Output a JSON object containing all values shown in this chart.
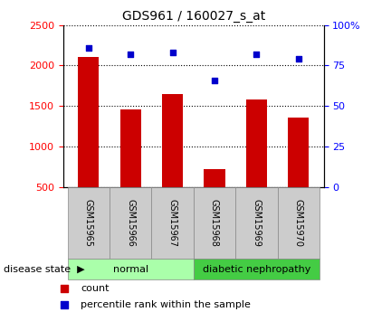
{
  "title": "GDS961 / 160027_s_at",
  "samples": [
    "GSM15965",
    "GSM15966",
    "GSM15967",
    "GSM15968",
    "GSM15969",
    "GSM15970"
  ],
  "counts": [
    2100,
    1460,
    1650,
    720,
    1580,
    1360
  ],
  "percentiles": [
    86,
    82,
    83,
    66,
    82,
    79
  ],
  "ylim_left": [
    500,
    2500
  ],
  "ylim_right": [
    0,
    100
  ],
  "yticks_left": [
    500,
    1000,
    1500,
    2000,
    2500
  ],
  "yticks_right": [
    0,
    25,
    50,
    75,
    100
  ],
  "bar_color": "#cc0000",
  "dot_color": "#0000cc",
  "groups": [
    {
      "label": "normal",
      "start": 0,
      "end": 3,
      "color": "#aaffaa"
    },
    {
      "label": "diabetic nephropathy",
      "start": 3,
      "end": 6,
      "color": "#44cc44"
    }
  ],
  "group_label": "disease state",
  "legend_count_label": "count",
  "legend_pct_label": "percentile rank within the sample",
  "tick_area_color": "#cccccc",
  "background_color": "#ffffff"
}
